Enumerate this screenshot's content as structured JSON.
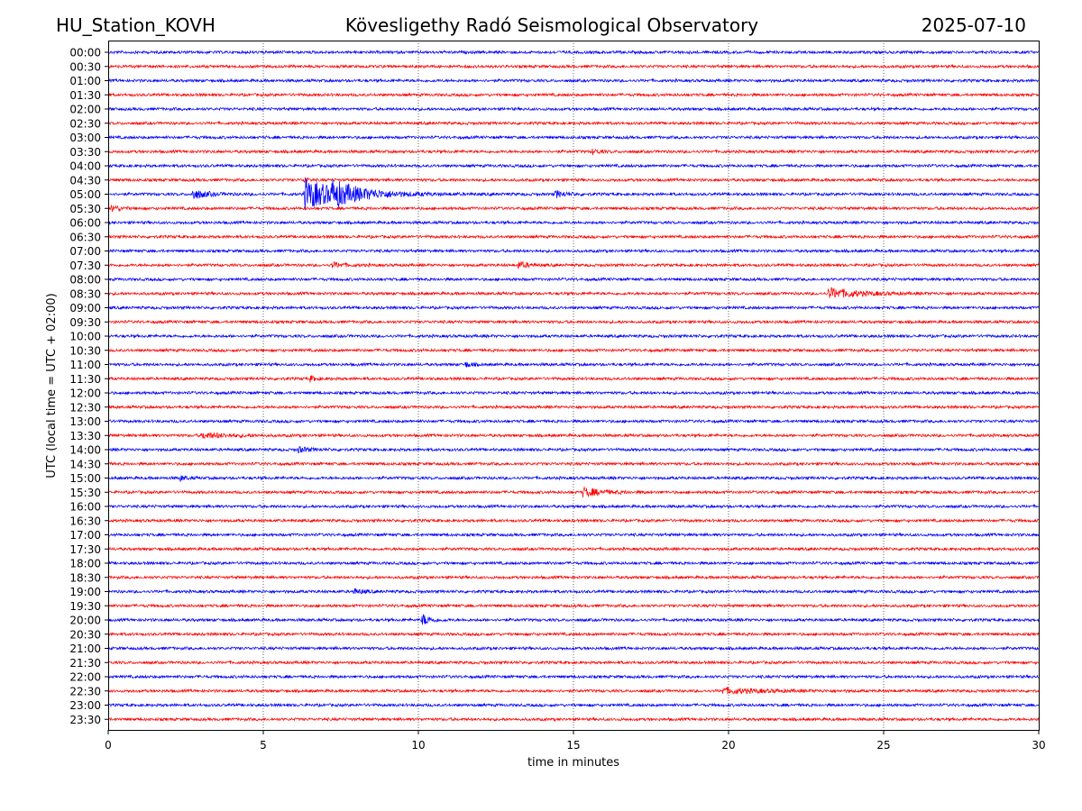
{
  "header": {
    "station": "HU_Station_KOVH",
    "observatory": "Kövesligethy Radó Seismological Observatory",
    "date": "2025-07-10"
  },
  "chart_data": {
    "type": "line",
    "xlabel": "time in minutes",
    "ylabel": "UTC (local time = UTC + 02:00)",
    "xlim": [
      0,
      30
    ],
    "x_ticks": [
      "0",
      "5",
      "10",
      "15",
      "20",
      "25",
      "30"
    ],
    "grid": "vertical dotted lines at 5, 10, 15, 20, 25",
    "colors": {
      "even_rows": "#0000ff",
      "odd_rows": "#ff0000"
    },
    "rows": [
      {
        "label": "00:00",
        "events": []
      },
      {
        "label": "00:30",
        "events": []
      },
      {
        "label": "01:00",
        "events": []
      },
      {
        "label": "01:30",
        "events": []
      },
      {
        "label": "02:00",
        "events": []
      },
      {
        "label": "02:30",
        "events": []
      },
      {
        "label": "03:00",
        "events": []
      },
      {
        "label": "03:30",
        "events": [
          {
            "t": 15.6,
            "amp": 3,
            "dur": 0.4
          }
        ]
      },
      {
        "label": "04:00",
        "events": []
      },
      {
        "label": "04:30",
        "events": [
          {
            "t": 6.3,
            "amp": 4,
            "dur": 0.2
          }
        ]
      },
      {
        "label": "05:00",
        "events": [
          {
            "t": 2.7,
            "amp": 6,
            "dur": 0.8
          },
          {
            "t": 6.3,
            "amp": 17,
            "dur": 2.5
          },
          {
            "t": 7.2,
            "amp": 9,
            "dur": 1.5
          },
          {
            "t": 14.4,
            "amp": 4,
            "dur": 0.6
          }
        ]
      },
      {
        "label": "05:30",
        "events": [
          {
            "t": 0.1,
            "amp": 4,
            "dur": 0.5
          }
        ]
      },
      {
        "label": "06:00",
        "events": []
      },
      {
        "label": "06:30",
        "events": []
      },
      {
        "label": "07:00",
        "events": []
      },
      {
        "label": "07:30",
        "events": [
          {
            "t": 7.2,
            "amp": 3,
            "dur": 0.8
          },
          {
            "t": 13.2,
            "amp": 4,
            "dur": 0.6
          }
        ]
      },
      {
        "label": "08:00",
        "events": []
      },
      {
        "label": "08:30",
        "events": [
          {
            "t": 23.2,
            "amp": 6,
            "dur": 1.8
          }
        ]
      },
      {
        "label": "09:00",
        "events": []
      },
      {
        "label": "09:30",
        "events": []
      },
      {
        "label": "10:00",
        "events": []
      },
      {
        "label": "10:30",
        "events": []
      },
      {
        "label": "11:00",
        "events": [
          {
            "t": 11.5,
            "amp": 3,
            "dur": 0.4
          }
        ]
      },
      {
        "label": "11:30",
        "events": [
          {
            "t": 6.5,
            "amp": 3,
            "dur": 0.4
          }
        ]
      },
      {
        "label": "12:00",
        "events": []
      },
      {
        "label": "12:30",
        "events": []
      },
      {
        "label": "13:00",
        "events": []
      },
      {
        "label": "13:30",
        "events": [
          {
            "t": 3.0,
            "amp": 3,
            "dur": 1.8
          }
        ]
      },
      {
        "label": "14:00",
        "events": [
          {
            "t": 6.1,
            "amp": 3,
            "dur": 0.8
          }
        ]
      },
      {
        "label": "14:30",
        "events": []
      },
      {
        "label": "15:00",
        "events": [
          {
            "t": 2.3,
            "amp": 3,
            "dur": 0.4
          }
        ]
      },
      {
        "label": "15:30",
        "events": [
          {
            "t": 15.3,
            "amp": 5,
            "dur": 1.2
          }
        ]
      },
      {
        "label": "16:00",
        "events": []
      },
      {
        "label": "16:30",
        "events": []
      },
      {
        "label": "17:00",
        "events": []
      },
      {
        "label": "17:30",
        "events": []
      },
      {
        "label": "18:00",
        "events": []
      },
      {
        "label": "18:30",
        "events": []
      },
      {
        "label": "19:00",
        "events": [
          {
            "t": 7.9,
            "amp": 3,
            "dur": 0.6
          }
        ]
      },
      {
        "label": "19:30",
        "events": []
      },
      {
        "label": "20:00",
        "events": [
          {
            "t": 10.1,
            "amp": 7,
            "dur": 0.5
          }
        ]
      },
      {
        "label": "20:30",
        "events": []
      },
      {
        "label": "21:00",
        "events": []
      },
      {
        "label": "21:30",
        "events": []
      },
      {
        "label": "22:00",
        "events": []
      },
      {
        "label": "22:30",
        "events": [
          {
            "t": 19.8,
            "amp": 3,
            "dur": 2.5
          }
        ]
      },
      {
        "label": "23:00",
        "events": []
      },
      {
        "label": "23:30",
        "events": []
      }
    ]
  }
}
